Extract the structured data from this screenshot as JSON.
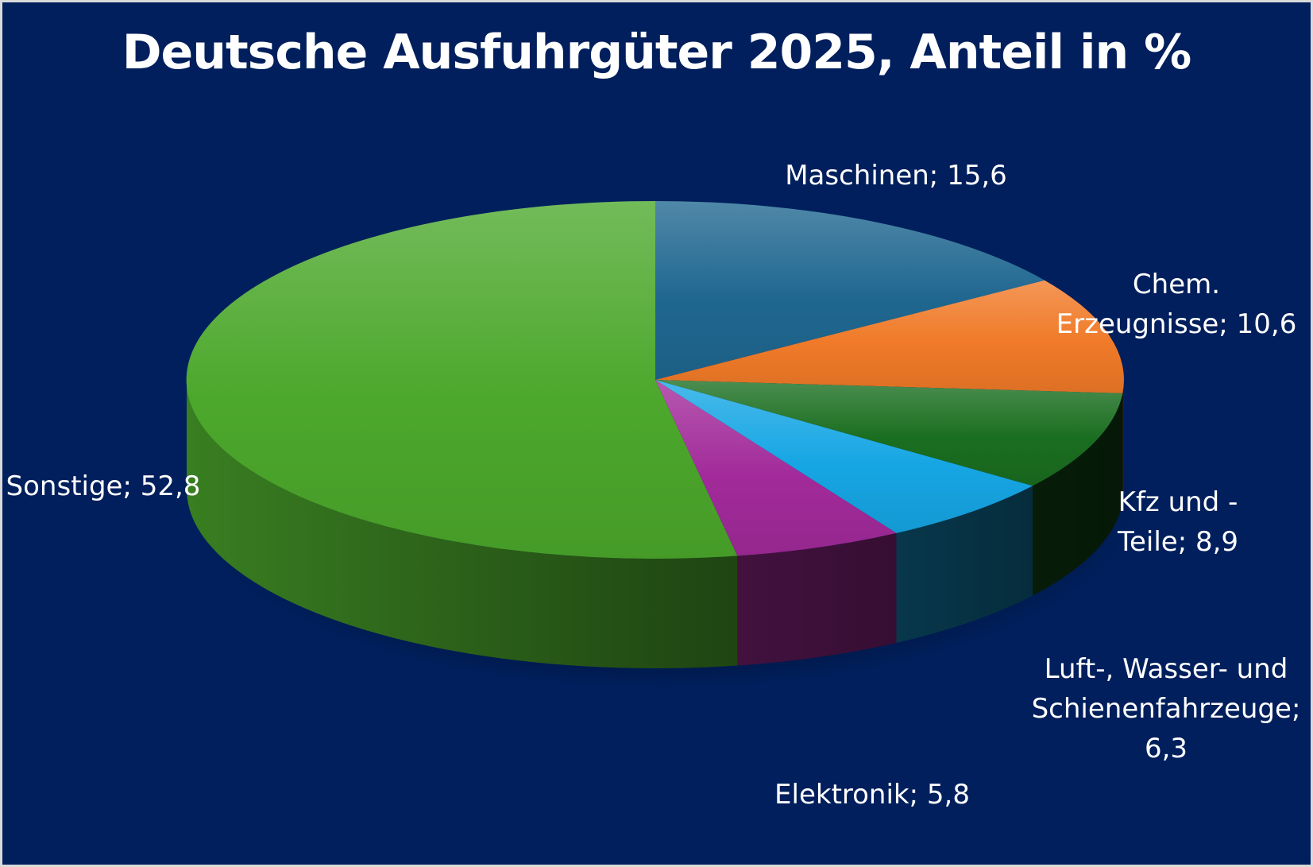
{
  "chart_data": {
    "type": "pie",
    "title": "Deutsche Ausfuhrgüter 2025, Anteil in %",
    "categories": [
      "Maschinen",
      "Chem. Erzeugnisse",
      "Kfz und -Teile",
      "Luft-, Wasser- und Schienenfahrzeuge",
      "Elektronik",
      "Sonstige"
    ],
    "values": [
      15.6,
      10.6,
      8.9,
      6.3,
      5.8,
      52.8
    ],
    "data_labels": [
      "Maschinen; 15,6",
      "Chem.\nErzeugnisse; 10,6",
      "Kfz und -\nTeile; 8,9",
      "Luft-, Wasser- und\nSchienenfahrzeuge;\n6,3",
      "Elektronik; 5,8",
      "Sonstige; 52,8"
    ],
    "colors": [
      "#1f6790",
      "#f07a28",
      "#1a6e20",
      "#16a6e4",
      "#a22a9a",
      "#4ca82c"
    ],
    "style": "3d",
    "legend": "none",
    "background": "#001f5c"
  }
}
